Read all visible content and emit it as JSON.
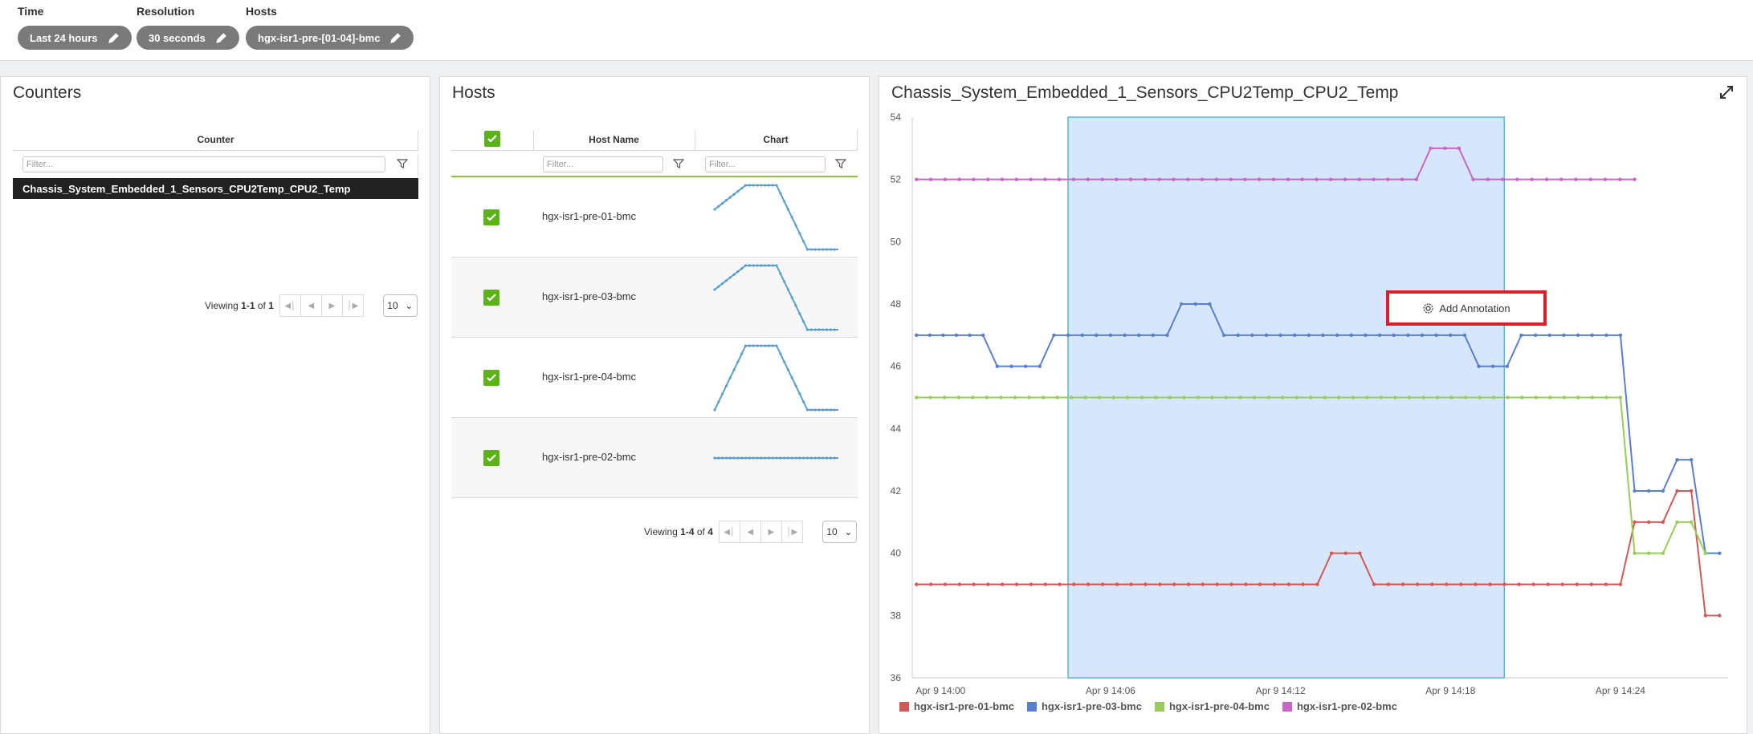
{
  "filters": [
    {
      "label": "Time",
      "value": "Last 24 hours"
    },
    {
      "label": "Resolution",
      "value": "30 seconds"
    },
    {
      "label": "Hosts",
      "value": "hgx-isr1-pre-[01-04]-bmc"
    }
  ],
  "counters_panel": {
    "title": "Counters",
    "column_header": "Counter",
    "filter_placeholder": "Filter...",
    "selected_row": "Chassis_System_Embedded_1_Sensors_CPU2Temp_CPU2_Temp",
    "pager": {
      "viewing": "Viewing",
      "range": "1-1",
      "of": "of",
      "total": "1",
      "page_size": "10"
    }
  },
  "hosts_panel": {
    "title": "Hosts",
    "columns": {
      "host_name": "Host Name",
      "chart": "Chart"
    },
    "filter_placeholder": "Filter...",
    "rows": [
      {
        "name": "hgx-isr1-pre-01-bmc",
        "spark": [
          44,
          47,
          47,
          39,
          39
        ]
      },
      {
        "name": "hgx-isr1-pre-03-bmc",
        "spark": [
          44,
          47,
          47,
          39,
          39
        ]
      },
      {
        "name": "hgx-isr1-pre-04-bmc",
        "spark": [
          39,
          47,
          47,
          39,
          39
        ]
      },
      {
        "name": "hgx-isr1-pre-02-bmc",
        "spark": [
          43,
          43,
          43,
          43,
          43
        ]
      }
    ],
    "pager": {
      "viewing": "Viewing",
      "range": "1-4",
      "of": "of",
      "total": "4",
      "page_size": "10"
    }
  },
  "chart_panel": {
    "title": "Chassis_System_Embedded_1_Sensors_CPU2Temp_CPU2_Temp",
    "annotation_button": "Add Annotation",
    "expand_icon": "expand-icon"
  },
  "chart_data": {
    "type": "line",
    "title": "Chassis_System_Embedded_1_Sensors_CPU2Temp_CPU2_Temp",
    "ylim": [
      36,
      54
    ],
    "yticks": [
      36,
      38,
      40,
      42,
      44,
      46,
      48,
      50,
      52,
      54
    ],
    "xticks": [
      "Apr 9 14:00",
      "Apr 9 14:06",
      "Apr 9 14:12",
      "Apr 9 14:18",
      "Apr 9 14:24"
    ],
    "x_minutes_offset_note": "",
    "selection_range_minutes": [
      4.5,
      19.9
    ],
    "series": [
      {
        "name": "hgx-isr1-pre-01-bmc",
        "color": "#d05a5a",
        "points": [
          [
            -0.85,
            39
          ],
          [
            13.3,
            39
          ],
          [
            13.8,
            40
          ],
          [
            14.8,
            40
          ],
          [
            15.3,
            39
          ],
          [
            24,
            39
          ],
          [
            24.5,
            41
          ],
          [
            25.5,
            41
          ],
          [
            26,
            42
          ],
          [
            26.5,
            42
          ],
          [
            27,
            38
          ],
          [
            27.5,
            38
          ]
        ]
      },
      {
        "name": "hgx-isr1-pre-03-bmc",
        "color": "#5b7fcf",
        "points": [
          [
            -0.85,
            47
          ],
          [
            1.5,
            47
          ],
          [
            2,
            46
          ],
          [
            3.5,
            46
          ],
          [
            4,
            47
          ],
          [
            8,
            47
          ],
          [
            8.5,
            48
          ],
          [
            9.5,
            48
          ],
          [
            10,
            47
          ],
          [
            18.5,
            47
          ],
          [
            19,
            46
          ],
          [
            20,
            46
          ],
          [
            20.5,
            47
          ],
          [
            24,
            47
          ],
          [
            24.5,
            42
          ],
          [
            25.5,
            42
          ],
          [
            26,
            43
          ],
          [
            26.5,
            43
          ],
          [
            27,
            40
          ],
          [
            27.5,
            40
          ]
        ]
      },
      {
        "name": "hgx-isr1-pre-04-bmc",
        "color": "#99cc5a",
        "points": [
          [
            -0.85,
            45
          ],
          [
            24,
            45
          ],
          [
            24.5,
            40
          ],
          [
            25.5,
            40
          ],
          [
            26,
            41
          ],
          [
            26.5,
            41
          ],
          [
            27,
            40
          ]
        ]
      },
      {
        "name": "hgx-isr1-pre-02-bmc",
        "color": "#c866c8",
        "points": [
          [
            -0.85,
            52
          ],
          [
            16.8,
            52
          ],
          [
            17.3,
            53
          ],
          [
            18.3,
            53
          ],
          [
            18.8,
            52
          ],
          [
            24.5,
            52
          ]
        ]
      }
    ]
  }
}
